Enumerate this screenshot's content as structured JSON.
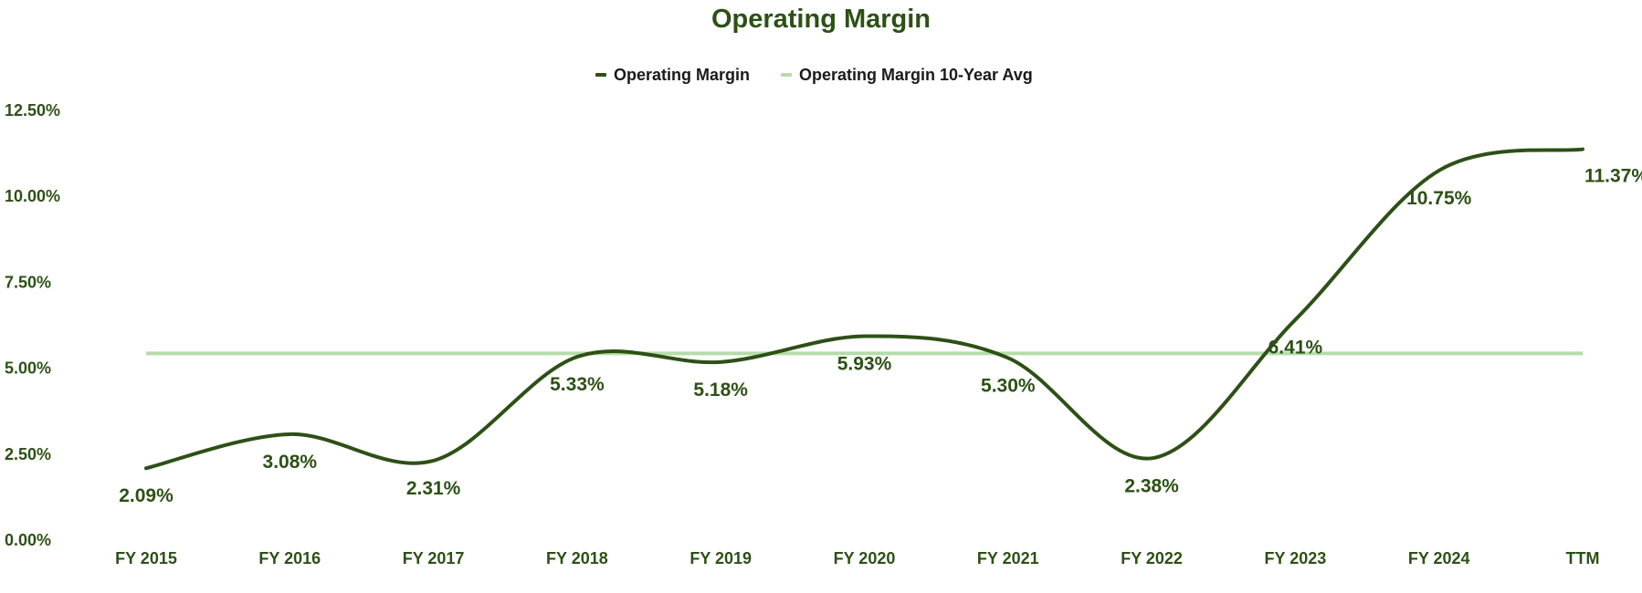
{
  "colors": {
    "series_line": "#2d5016",
    "avg_line": "#b5dcaa",
    "title": "#2d5016",
    "tick": "#2d5016",
    "legend_text": "#1a1a1a"
  },
  "chart_data": {
    "type": "line",
    "title": "Operating Margin",
    "xlabel": "",
    "ylabel": "",
    "ylim": [
      0,
      12.5
    ],
    "yticks": [
      "0.00%",
      "2.50%",
      "5.00%",
      "7.50%",
      "10.00%",
      "12.50%"
    ],
    "ytick_values": [
      0,
      2.5,
      5,
      7.5,
      10,
      12.5
    ],
    "categories": [
      "FY 2015",
      "FY 2016",
      "FY 2017",
      "FY 2018",
      "FY 2019",
      "FY 2020",
      "FY 2021",
      "FY 2022",
      "FY 2023",
      "FY 2024",
      "TTM"
    ],
    "legend_position": "top-center",
    "grid": false,
    "series": [
      {
        "name": "Operating Margin",
        "values": [
          2.09,
          3.08,
          2.31,
          5.33,
          5.18,
          5.93,
          5.3,
          2.38,
          6.41,
          10.75,
          11.37
        ],
        "labels": [
          "2.09%",
          "3.08%",
          "2.31%",
          "5.33%",
          "5.18%",
          "5.93%",
          "5.30%",
          "2.38%",
          "6.41%",
          "10.75%",
          "11.37%"
        ]
      },
      {
        "name": "Operating Margin 10-Year Avg",
        "values": [
          5.43,
          5.43,
          5.43,
          5.43,
          5.43,
          5.43,
          5.43,
          5.43,
          5.43,
          5.43,
          5.43
        ]
      }
    ]
  }
}
